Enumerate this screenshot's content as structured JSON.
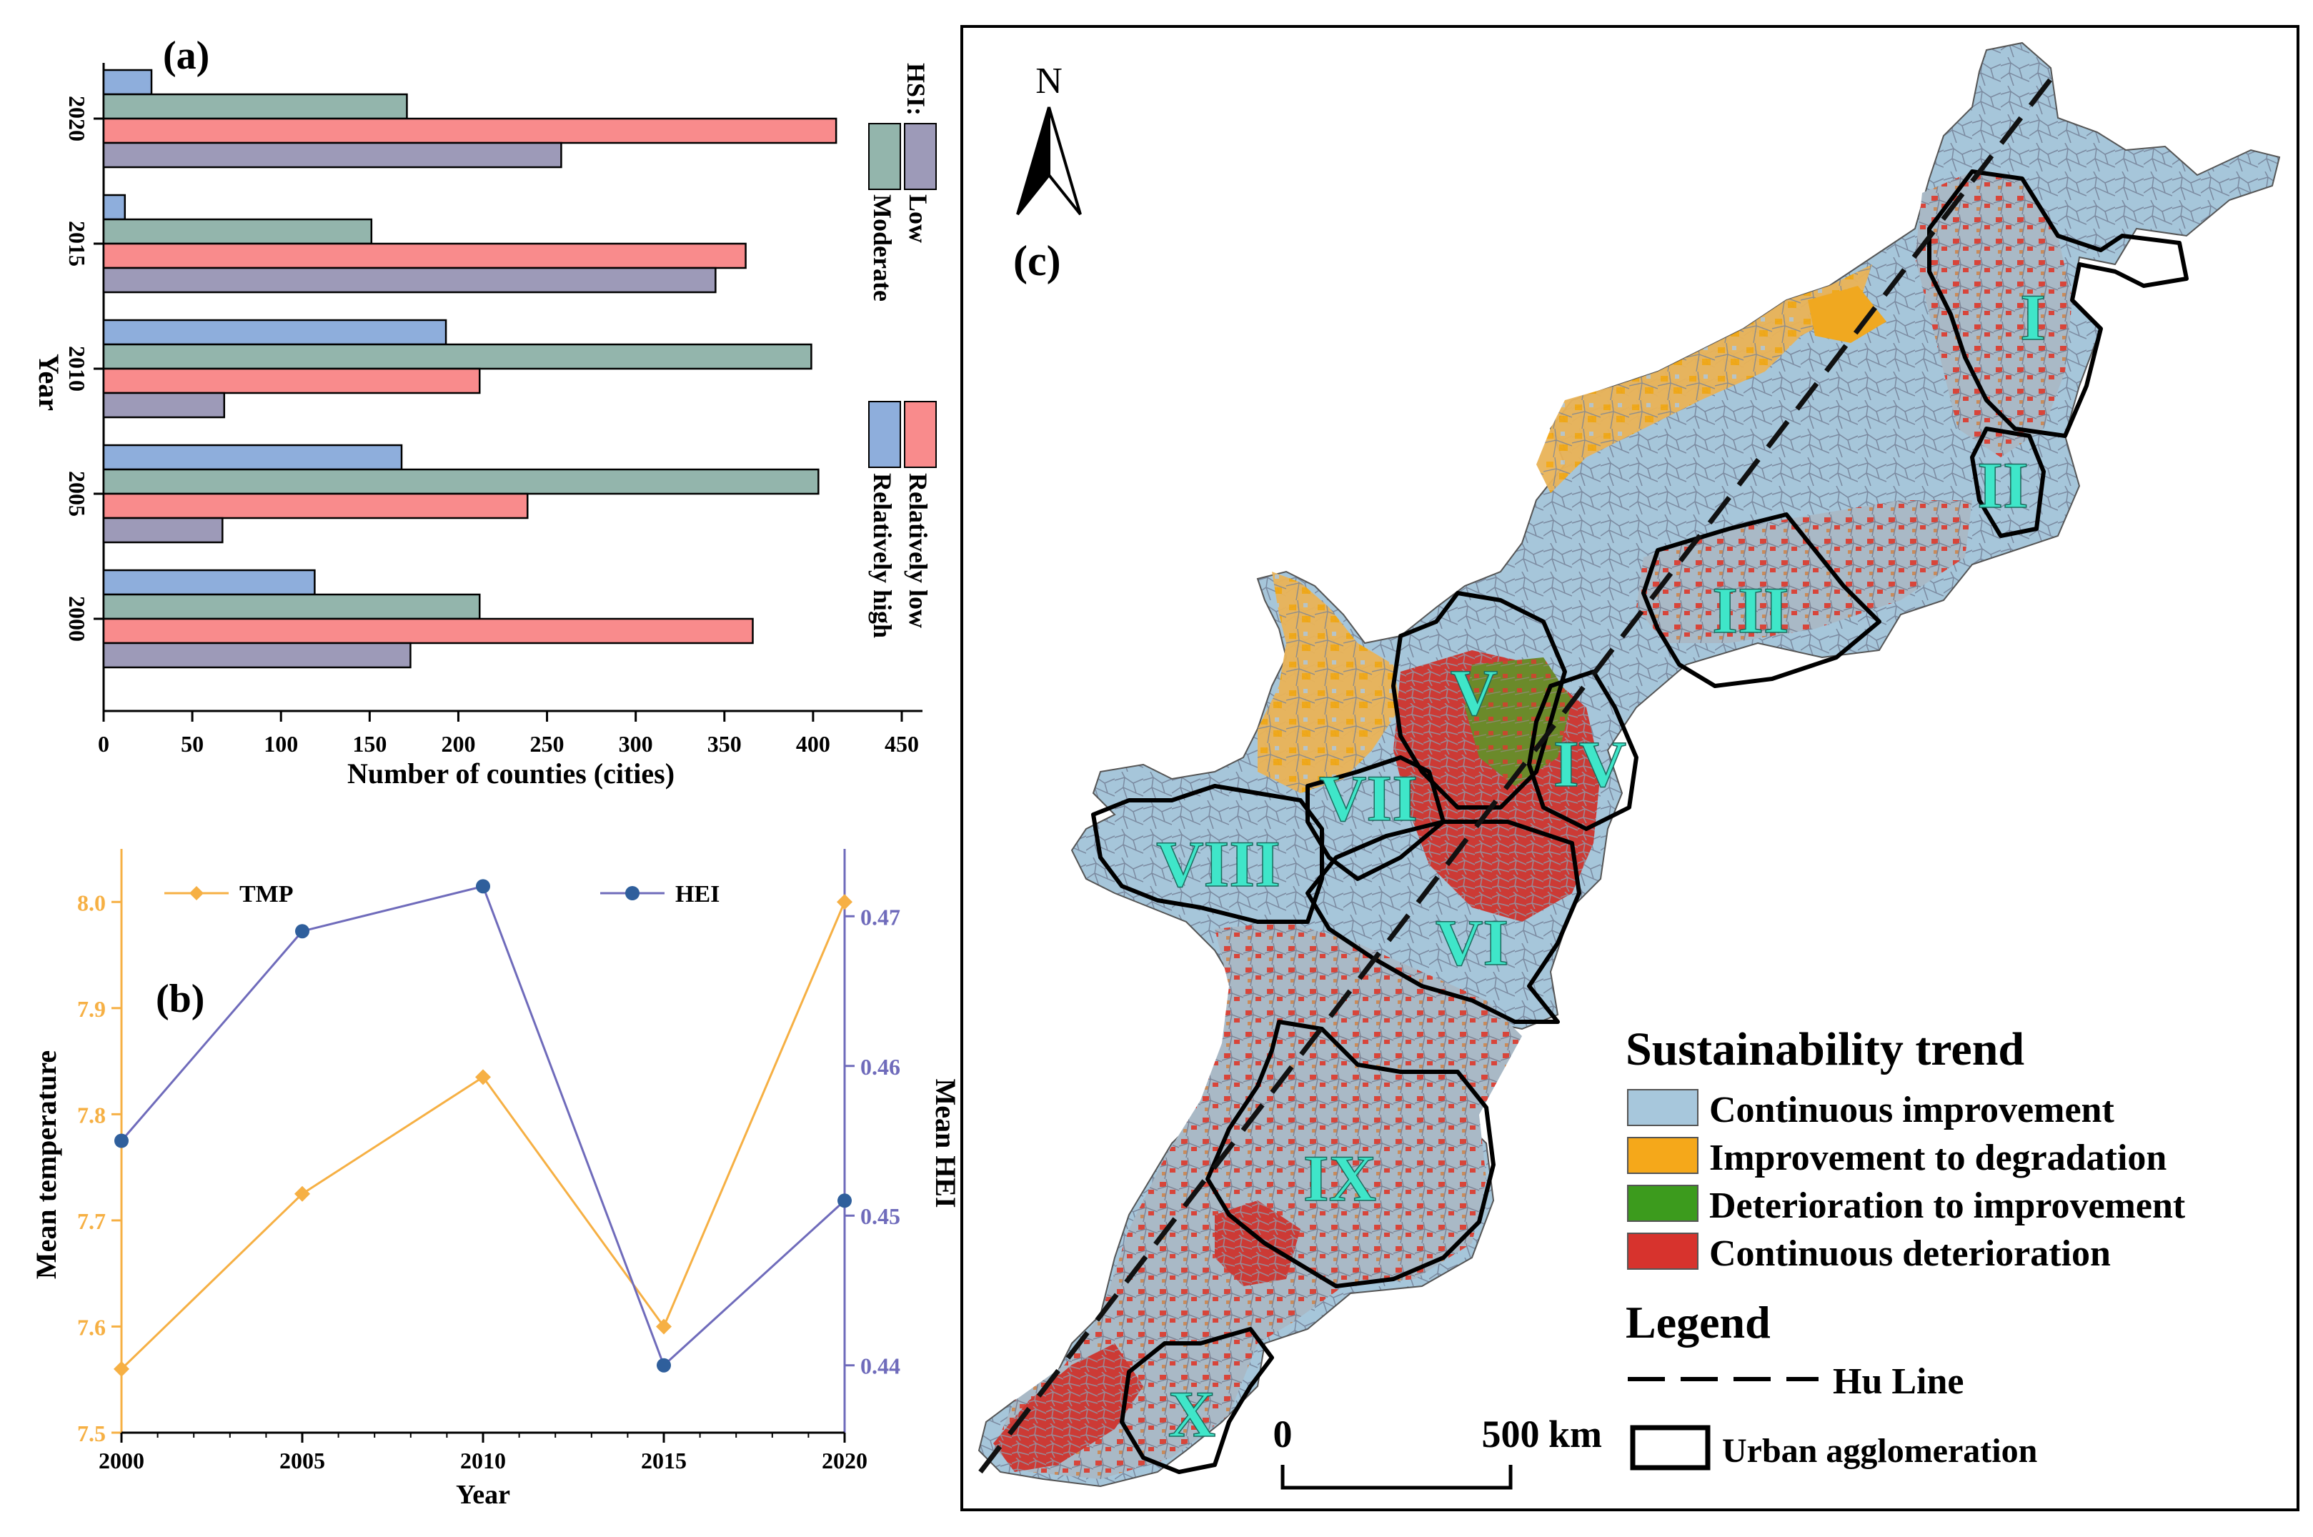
{
  "panel_a": {
    "label": "(a)",
    "chart_data": {
      "type": "bar",
      "orientation": "horizontal",
      "categories": [
        "2000",
        "2005",
        "2010",
        "2015",
        "2020"
      ],
      "series": [
        {
          "name": "Relatively high",
          "color": "#8eaedc",
          "values": [
            119,
            168,
            193,
            12,
            27
          ]
        },
        {
          "name": "Moderate",
          "color": "#93b5ac",
          "values": [
            212,
            403,
            399,
            151,
            171
          ]
        },
        {
          "name": "Relatively low",
          "color": "#f98b8c",
          "values": [
            366,
            239,
            212,
            362,
            413
          ]
        },
        {
          "name": "Low",
          "color": "#9d9ab8",
          "values": [
            173,
            67,
            68,
            345,
            258
          ]
        }
      ],
      "xlabel": "Number of counties (cities)",
      "ylabel": "Year",
      "xlim": [
        0,
        450
      ],
      "xticks": [
        "0",
        "50",
        "100",
        "150",
        "200",
        "250",
        "300",
        "350",
        "400",
        "450"
      ],
      "legend_title": "HSI:",
      "legend_position": "right, rotated"
    }
  },
  "panel_b": {
    "label": "(b)",
    "chart_data": {
      "type": "line",
      "x": [
        "2000",
        "2005",
        "2010",
        "2015",
        "2020"
      ],
      "series": [
        {
          "name": "TMP",
          "axis": "left",
          "color": "#f6b044",
          "values": [
            7.56,
            7.725,
            7.835,
            7.6,
            8.0
          ]
        },
        {
          "name": "HEI",
          "axis": "right",
          "color": "#6f6bbb",
          "values": [
            0.455,
            0.469,
            0.472,
            0.44,
            0.451
          ]
        }
      ],
      "xlabel": "Year",
      "ylabel_left": "Mean temperature",
      "ylabel_right": "Mean HEI",
      "ylim_left": [
        7.5,
        8.05
      ],
      "ylim_right": [
        0.4355,
        0.4745
      ],
      "yticks_left": [
        "7.5",
        "7.6",
        "7.7",
        "7.8",
        "7.9",
        "8.0"
      ],
      "yticks_right": [
        "0.44",
        "0.45",
        "0.46",
        "0.47"
      ],
      "xticks": [
        "2000",
        "2005",
        "2010",
        "2015",
        "2020"
      ]
    }
  },
  "panel_c": {
    "label": "(c)",
    "north": "N",
    "region_labels": [
      "I",
      "II",
      "III",
      "IV",
      "V",
      "VI",
      "VII",
      "VIII",
      "IX",
      "X"
    ],
    "legend": {
      "title": "Sustainability trend",
      "items": [
        {
          "label": "Continuous improvement",
          "color": "#a7c7dc"
        },
        {
          "label": "Improvement to degradation",
          "color": "#f5a81a"
        },
        {
          "label": "Deterioration to improvement",
          "color": "#3c9b1d"
        },
        {
          "label": "Continuous deterioration",
          "color": "#d7332d"
        }
      ],
      "title2": "Legend",
      "hu_line": "Hu Line",
      "urban": "Urban agglomeration"
    },
    "scale": {
      "zero": "0",
      "max": "500",
      "unit": "km"
    }
  }
}
